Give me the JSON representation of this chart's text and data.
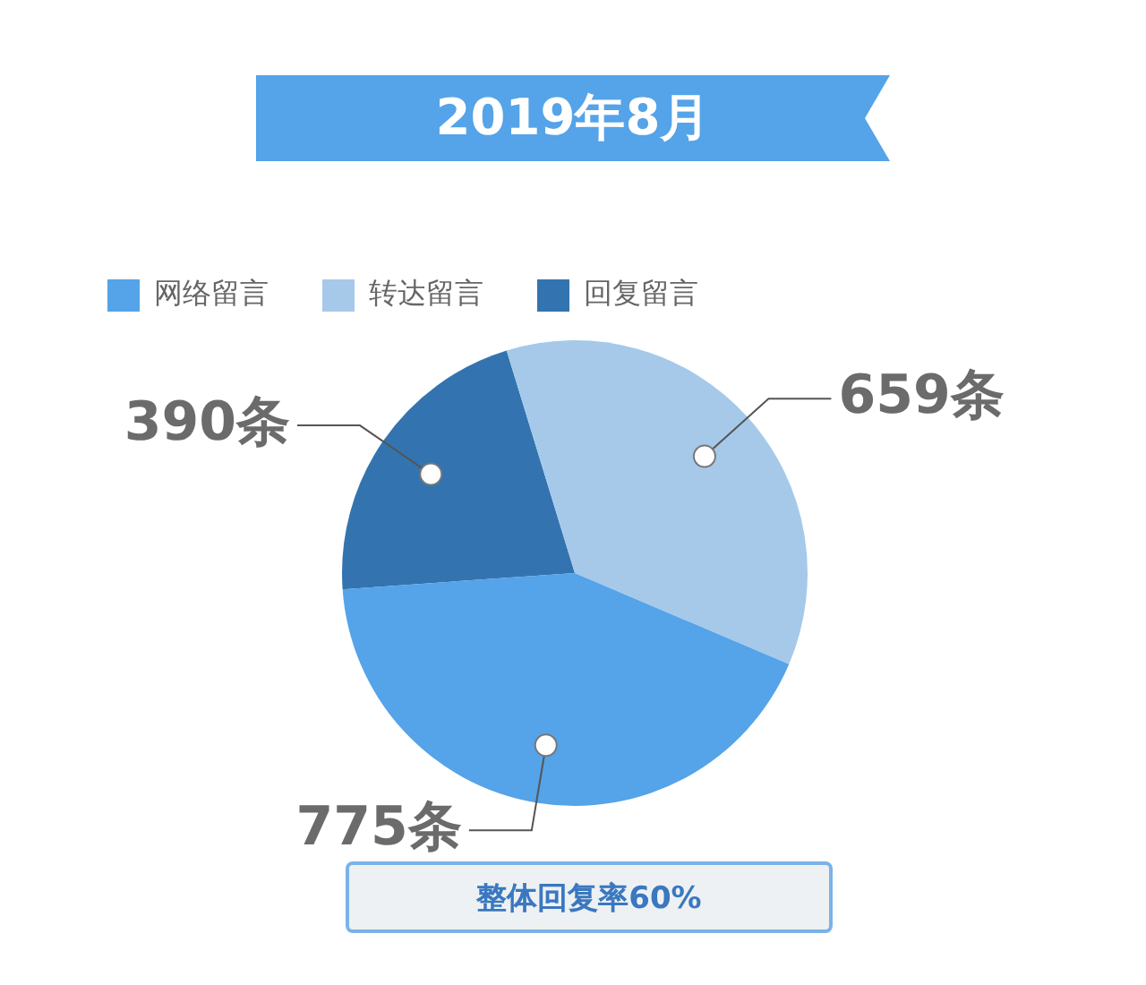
{
  "chart_data": {
    "type": "pie",
    "title": "2019年8月",
    "categories": [
      "网络留言",
      "转达留言",
      "回复留言"
    ],
    "values": [
      775,
      659,
      390
    ],
    "colors": [
      "#55a3e8",
      "#a6c9ea",
      "#3374b0"
    ],
    "value_labels": [
      "775条",
      "659条",
      "390条"
    ],
    "legend": "top left",
    "annotations": [
      "整体回复率60%"
    ]
  }
}
